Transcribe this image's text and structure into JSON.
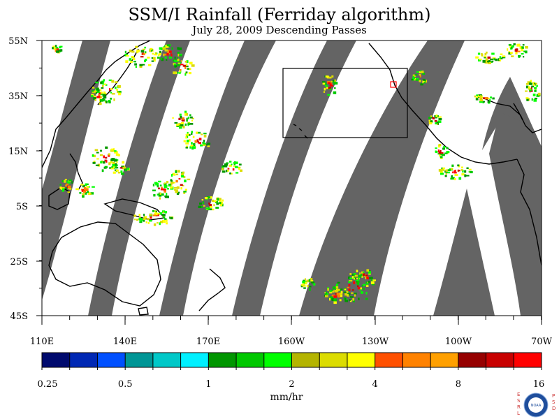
{
  "title": "SSM/I Rainfall (Ferriday algorithm)",
  "subtitle": "July 28, 2009  Descending Passes",
  "lat_labels": [
    "55N",
    "35N",
    "15N",
    "5S",
    "25S",
    "45S"
  ],
  "lon_labels": [
    "110E",
    "140E",
    "170E",
    "160W",
    "130W",
    "100W",
    "70W"
  ],
  "colorbar": {
    "colors": [
      "#000a6e",
      "#0028b4",
      "#0050ff",
      "#009696",
      "#00c8c8",
      "#00f0ff",
      "#009600",
      "#00c800",
      "#00ff00",
      "#b4b400",
      "#dcdc00",
      "#ffff00",
      "#ff5000",
      "#ff8200",
      "#ffa000",
      "#960000",
      "#c80000",
      "#ff0000"
    ],
    "tick_labels": [
      "0.25",
      "0.5",
      "1",
      "2",
      "4",
      "8",
      "16"
    ],
    "units": "mm/hr"
  },
  "colors": {
    "swath_gap": "#646464",
    "land_outline": "#000000",
    "box": "#000000",
    "marker": "#ff0000"
  },
  "logo": {
    "left_letters": "ESRL",
    "right_letters": "PSD",
    "center_text": "NOAA"
  }
}
